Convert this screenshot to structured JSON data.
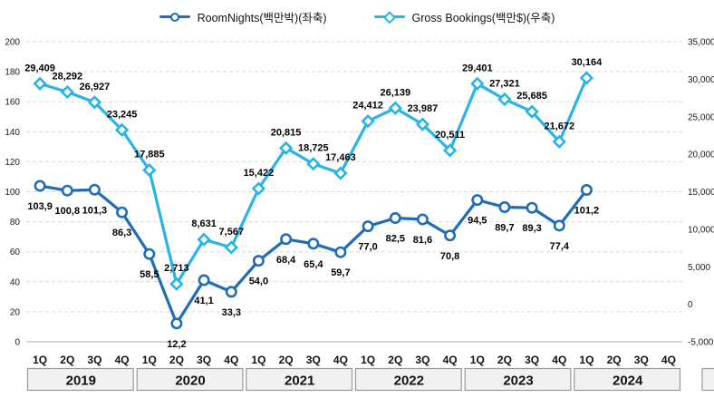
{
  "legend": {
    "items": [
      {
        "label": "RoomNights(백만박)(좌축)",
        "marker": "circle",
        "color": "#1f6db6"
      },
      {
        "label": "Gross Bookings(백만$)(우축)",
        "marker": "diamond",
        "color": "#29b4e8"
      }
    ]
  },
  "chart_data": {
    "type": "line",
    "title": "",
    "legend_position": "top",
    "grid": "dashed-horizontal",
    "categories": [
      "1Q",
      "2Q",
      "3Q",
      "4Q",
      "1Q",
      "2Q",
      "3Q",
      "4Q",
      "1Q",
      "2Q",
      "3Q",
      "4Q",
      "1Q",
      "2Q",
      "3Q",
      "4Q",
      "1Q",
      "2Q",
      "3Q",
      "4Q",
      "1Q",
      "2Q",
      "3Q",
      "4Q"
    ],
    "year_groups": [
      "2019",
      "2020",
      "2021",
      "2022",
      "2023",
      "2024"
    ],
    "series": [
      {
        "id": "roomnights",
        "name": "RoomNights(백만박)(좌축)",
        "axis": "left",
        "marker": "circle",
        "color": "#1f6db6",
        "label_position": "below",
        "values": [
          103.9,
          100.8,
          101.3,
          86.3,
          58.5,
          12.2,
          41.1,
          33.3,
          54.0,
          68.4,
          65.4,
          59.7,
          77.0,
          82.5,
          81.6,
          70.8,
          94.5,
          89.7,
          89.3,
          77.4,
          101.2,
          null,
          null,
          null
        ],
        "labels": [
          "103,9",
          "100,8",
          "101,3",
          "86,3",
          "58,5",
          "12,2",
          "41,1",
          "33,3",
          "54,0",
          "68,4",
          "65,4",
          "59,7",
          "77,0",
          "82,5",
          "81,6",
          "70,8",
          "94,5",
          "89,7",
          "89,3",
          "77,4",
          "101,2",
          null,
          null,
          null
        ]
      },
      {
        "id": "gross-bookings",
        "name": "Gross Bookings(백만$)(우축)",
        "axis": "right",
        "marker": "diamond",
        "color": "#29b4e8",
        "label_position": "above",
        "values": [
          29409,
          28292,
          26927,
          23245,
          17885,
          2713,
          8631,
          7567,
          15422,
          20815,
          18725,
          17463,
          24412,
          26139,
          23987,
          20511,
          29401,
          27321,
          25685,
          21672,
          30164,
          null,
          null,
          null
        ],
        "labels": [
          "29,409",
          "28,292",
          "26,927",
          "23,245",
          "17,885",
          "2,713",
          "8,631",
          "7,567",
          "15,422",
          "20,815",
          "18,725",
          "17,463",
          "24,412",
          "26,139",
          "23,987",
          "20,511",
          "29,401",
          "27,321",
          "25,685",
          "21,672",
          "30,164",
          null,
          null,
          null
        ]
      }
    ],
    "left_axis": {
      "min": 0,
      "max": 200,
      "tick_values": [
        200,
        180,
        160,
        140,
        120,
        100,
        80,
        60,
        40,
        20,
        0
      ],
      "tick_labels": [
        "200",
        "180",
        "160",
        "140",
        "120",
        "100",
        "80",
        "60",
        "40",
        "20",
        "0"
      ]
    },
    "right_axis": {
      "min": -5000,
      "max": 35000,
      "tick_values": [
        35000,
        30000,
        25000,
        20000,
        15000,
        10000,
        5000,
        0,
        -5000
      ],
      "tick_labels": [
        "35,000",
        "30,000",
        "25,000",
        "20,000",
        "15,000",
        "10,000",
        "5,000",
        "0",
        "-5,000"
      ]
    }
  }
}
